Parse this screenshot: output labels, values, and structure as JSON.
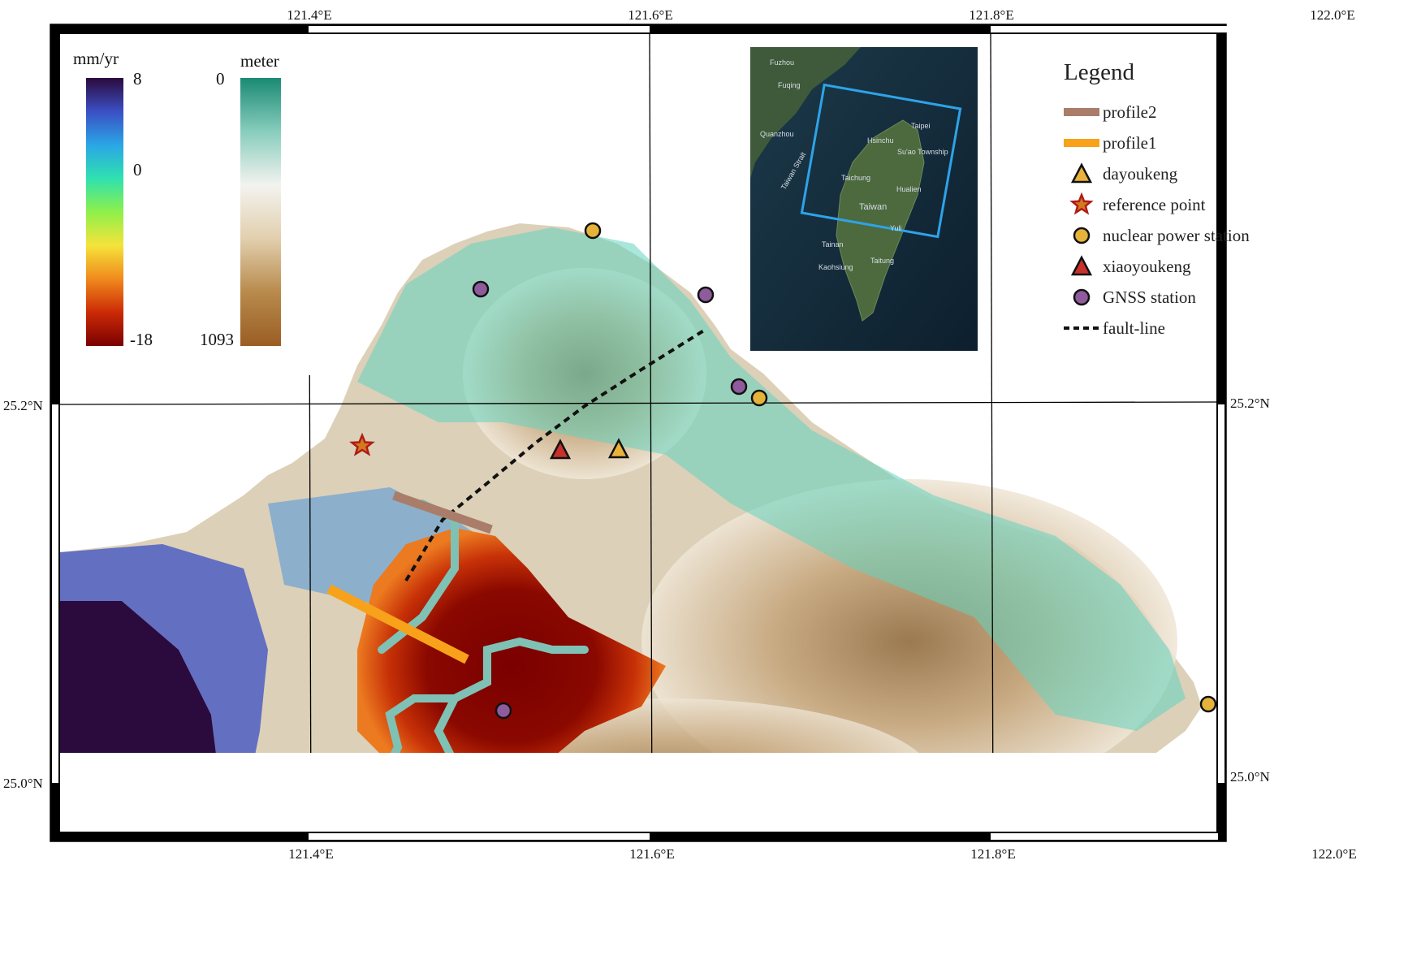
{
  "colorbars": {
    "velocity": {
      "unit": "mm/yr",
      "max_label": "8",
      "mid_label": "0",
      "min_label": "-18",
      "colors": [
        "#2b0a3d",
        "#3b4fc4",
        "#2aa6e6",
        "#2fe1b0",
        "#8ef04a",
        "#f5e33b",
        "#f08a1c",
        "#cc2a06",
        "#7a0000"
      ]
    },
    "elevation": {
      "unit": "meter",
      "top_label": "0",
      "bottom_label": "1093",
      "colors": [
        "#1a8a74",
        "#88cdbd",
        "#f3f3ef",
        "#e2cfae",
        "#b88a4c",
        "#9a5d23"
      ]
    }
  },
  "axes": {
    "lon_ticks": [
      "121.4°E",
      "121.6°E",
      "121.8°E",
      "122.0°E"
    ],
    "lat_ticks": [
      "25.2°N",
      "25.0°N"
    ]
  },
  "legend": {
    "title": "Legend",
    "items": [
      {
        "label": "profile2",
        "symbol": "line",
        "color": "#a97d69"
      },
      {
        "label": "profile1",
        "symbol": "line",
        "color": "#f7a21a"
      },
      {
        "label": "dayoukeng",
        "symbol": "triangle",
        "color": "#e9b23a"
      },
      {
        "label": "reference point",
        "symbol": "star",
        "color": "#b01c17"
      },
      {
        "label": "nuclear power station",
        "symbol": "circle",
        "color": "#e6b33a"
      },
      {
        "label": "xiaoyoukeng",
        "symbol": "triangle",
        "color": "#c9302a"
      },
      {
        "label": "GNSS station",
        "symbol": "circle",
        "color": "#8e5b9c"
      },
      {
        "label": "fault-line",
        "symbol": "dashed",
        "color": "#111111"
      }
    ]
  },
  "inset": {
    "place_labels": [
      "Fuzhou",
      "Fuqing",
      "Quanzhou",
      "Taipei",
      "Hsinchu",
      "Su'ao Township",
      "Taichung",
      "Taiwan Strait",
      "Hualien",
      "Taiwan",
      "Yuli",
      "Tainan",
      "Kaohsiung",
      "Taitung"
    ]
  },
  "markers": {
    "nuclear_power_stations": 3,
    "gnss_stations": 4,
    "reference_points": 1,
    "xiaoyoukeng": 1,
    "dayoukeng": 1
  }
}
